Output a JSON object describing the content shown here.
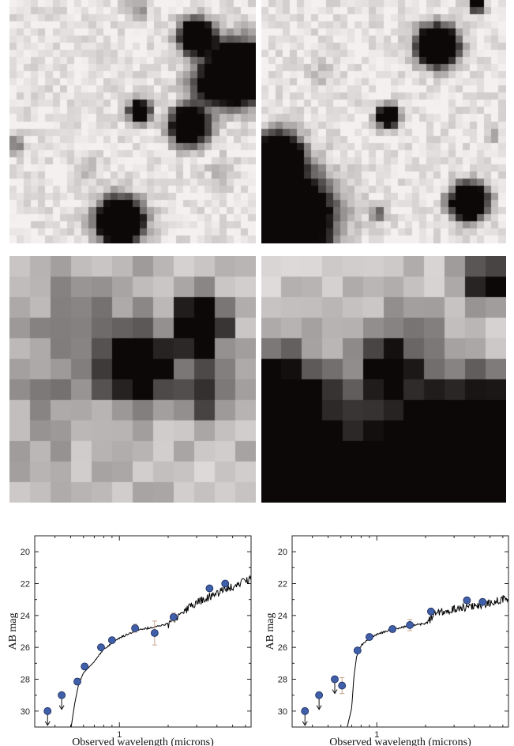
{
  "figure": {
    "image_rows": [
      {
        "row_name": "row-1",
        "style": "stars",
        "panels": [
          {
            "name": "image-panel-top-left"
          },
          {
            "name": "image-panel-top-right"
          }
        ]
      },
      {
        "row_name": "row-2",
        "style": "zoom",
        "panels": [
          {
            "name": "image-panel-middle-left"
          },
          {
            "name": "image-panel-middle-right"
          }
        ]
      }
    ],
    "colors": {
      "marker_fill": "#3f5fa8",
      "marker_edge": "#1a2a5a",
      "errorbar": "#c9a58e",
      "model_line": "#000000",
      "image_dark": "#1c1717",
      "image_light": "#f4f4f4"
    }
  },
  "chart_data": [
    {
      "type": "scatter",
      "title": "",
      "xlabel": "Observed wavelength (microns)",
      "ylabel": "AB mag",
      "xscale": "log",
      "xlim": [
        0.3,
        6.5
      ],
      "ylim": [
        31,
        19
      ],
      "y_inverted": true,
      "x_ticks": [
        1
      ],
      "x_tick_labels": [
        "1"
      ],
      "y_ticks": [
        20,
        22,
        24,
        26,
        28,
        30
      ],
      "y_tick_labels": [
        "20",
        "22",
        "24",
        "26",
        "28",
        "30"
      ],
      "grid": false,
      "points": [
        {
          "x": 0.36,
          "y": 30.0,
          "upper_limit": true
        },
        {
          "x": 0.44,
          "y": 29.0,
          "upper_limit": true
        },
        {
          "x": 0.55,
          "y": 28.15,
          "err": 0.2
        },
        {
          "x": 0.61,
          "y": 27.2,
          "err": 0.15
        },
        {
          "x": 0.77,
          "y": 26.0,
          "err": 0.15
        },
        {
          "x": 0.9,
          "y": 25.55,
          "err": 0.15
        },
        {
          "x": 1.25,
          "y": 24.8,
          "err": 0.25
        },
        {
          "x": 1.65,
          "y": 25.1,
          "err": 0.75
        },
        {
          "x": 2.16,
          "y": 24.1,
          "err": 0.25
        },
        {
          "x": 3.6,
          "y": 22.3
        },
        {
          "x": 4.5,
          "y": 22.0
        }
      ],
      "model_sed": {
        "lambda": [
          0.5,
          0.53,
          0.56,
          0.6,
          0.7,
          0.8,
          1.0,
          1.3,
          1.7,
          2.0,
          2.3,
          3.0,
          4.0,
          5.0,
          6.5
        ],
        "mag": [
          31.2,
          29.5,
          28.3,
          27.6,
          26.9,
          26.1,
          25.4,
          24.9,
          24.7,
          24.5,
          23.9,
          23.1,
          22.5,
          22.1,
          21.6
        ]
      }
    },
    {
      "type": "scatter",
      "title": "",
      "xlabel": "Observed wavelength (microns)",
      "ylabel": "AB mag",
      "xscale": "log",
      "xlim": [
        0.3,
        6.5
      ],
      "ylim": [
        31,
        19
      ],
      "y_inverted": true,
      "x_ticks": [
        1
      ],
      "x_tick_labels": [
        "1"
      ],
      "y_ticks": [
        20,
        22,
        24,
        26,
        28,
        30
      ],
      "y_tick_labels": [
        "20",
        "22",
        "24",
        "26",
        "28",
        "30"
      ],
      "grid": false,
      "points": [
        {
          "x": 0.36,
          "y": 30.0,
          "upper_limit": true
        },
        {
          "x": 0.44,
          "y": 29.0,
          "upper_limit": true
        },
        {
          "x": 0.55,
          "y": 28.0,
          "upper_limit": true
        },
        {
          "x": 0.61,
          "y": 28.4,
          "err": 0.5
        },
        {
          "x": 0.76,
          "y": 26.2,
          "err": 0.15
        },
        {
          "x": 0.9,
          "y": 25.35,
          "err": 0.15
        },
        {
          "x": 1.25,
          "y": 24.85,
          "err": 0.2
        },
        {
          "x": 1.6,
          "y": 24.6,
          "err": 0.35
        },
        {
          "x": 2.16,
          "y": 23.75,
          "err": 0.15
        },
        {
          "x": 3.6,
          "y": 23.05
        },
        {
          "x": 4.5,
          "y": 23.15
        }
      ],
      "model_sed": {
        "lambda": [
          0.65,
          0.7,
          0.72,
          0.75,
          0.8,
          0.9,
          1.0,
          1.2,
          1.5,
          2.0,
          2.3,
          3.0,
          4.0,
          5.0,
          6.5
        ],
        "mag": [
          31.2,
          29.8,
          28.0,
          26.6,
          25.9,
          25.4,
          25.2,
          24.9,
          24.7,
          24.5,
          23.7,
          23.5,
          23.3,
          23.1,
          22.8
        ]
      }
    }
  ]
}
